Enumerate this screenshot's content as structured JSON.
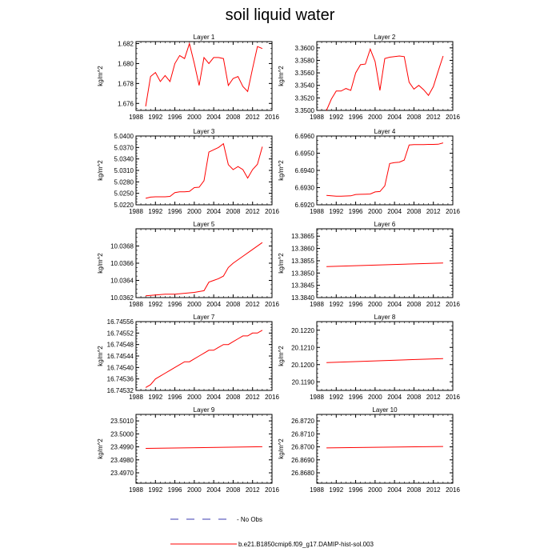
{
  "title": "soil liquid water",
  "legend": {
    "no_obs_label": "No Obs",
    "series_label": "b.e21.B1850cmip6.f09_g17.DAMIP-hist-sol.003",
    "series_color": "#ff0000",
    "no_obs_color": "#3b3bb0"
  },
  "chart_data": [
    {
      "type": "line",
      "title": "Layer 1",
      "ylabel": "kg/m^2",
      "xlim": [
        1988,
        2016
      ],
      "xticks": [
        "1988",
        "1992",
        "1996",
        "2000",
        "2004",
        "2008",
        "2012",
        "2016"
      ],
      "ylim": [
        1.6753,
        1.6822
      ],
      "yticks": [
        "1.676",
        "1.678",
        "1.680",
        "1.682"
      ],
      "series": [
        {
          "x": [
            1990,
            1991,
            1992,
            1993,
            1994,
            1995,
            1996,
            1997,
            1998,
            1999,
            2000,
            2001,
            2002,
            2003,
            2004,
            2005,
            2006,
            2007,
            2008,
            2009,
            2010,
            2011,
            2012,
            2013,
            2014
          ],
          "y": [
            1.6757,
            1.6787,
            1.6791,
            1.6782,
            1.6788,
            1.6782,
            1.68,
            1.6808,
            1.6805,
            1.682,
            1.68,
            1.6778,
            1.6806,
            1.68,
            1.6806,
            1.6806,
            1.6805,
            1.6778,
            1.6785,
            1.6787,
            1.6777,
            1.6772,
            1.6795,
            1.6817,
            1.6815
          ]
        }
      ]
    },
    {
      "type": "line",
      "title": "Layer 2",
      "ylabel": "kg/m^2",
      "xlim": [
        1988,
        2016
      ],
      "xticks": [
        "1988",
        "1992",
        "1996",
        "2000",
        "2004",
        "2008",
        "2012",
        "2016"
      ],
      "ylim": [
        3.35,
        3.361
      ],
      "yticks": [
        "3.3500",
        "3.3520",
        "3.3540",
        "3.3560",
        "3.3580",
        "3.3600"
      ],
      "series": [
        {
          "x": [
            1990,
            1991,
            1992,
            1993,
            1994,
            1995,
            1996,
            1997,
            1998,
            1999,
            2000,
            2001,
            2002,
            2003,
            2004,
            2005,
            2006,
            2007,
            2008,
            2009,
            2010,
            2011,
            2012,
            2013,
            2014
          ],
          "y": [
            3.35,
            3.3518,
            3.3531,
            3.3531,
            3.3535,
            3.3532,
            3.356,
            3.3573,
            3.3574,
            3.3598,
            3.3578,
            3.3532,
            3.3583,
            3.3585,
            3.3586,
            3.3587,
            3.3586,
            3.3545,
            3.3534,
            3.354,
            3.3533,
            3.3524,
            3.3538,
            3.3563,
            3.3587
          ]
        }
      ]
    },
    {
      "type": "line",
      "title": "Layer 3",
      "ylabel": "kg/m^2",
      "xlim": [
        1988,
        2016
      ],
      "xticks": [
        "1988",
        "1992",
        "1996",
        "2000",
        "2004",
        "2008",
        "2012",
        "2016"
      ],
      "ylim": [
        5.022,
        5.04
      ],
      "yticks": [
        "5.0220",
        "5.0250",
        "5.0280",
        "5.0310",
        "5.0340",
        "5.0370",
        "5.0400"
      ],
      "series": [
        {
          "x": [
            1990,
            1991,
            1992,
            1993,
            1994,
            1995,
            1996,
            1997,
            1998,
            1999,
            2000,
            2001,
            2002,
            2003,
            2004,
            2005,
            2006,
            2007,
            2008,
            2009,
            2010,
            2011,
            2012,
            2013,
            2014
          ],
          "y": [
            5.0237,
            5.024,
            5.0241,
            5.0241,
            5.0241,
            5.0242,
            5.0252,
            5.0254,
            5.0254,
            5.0255,
            5.0265,
            5.0266,
            5.0283,
            5.0358,
            5.0364,
            5.037,
            5.038,
            5.0325,
            5.0312,
            5.032,
            5.0312,
            5.029,
            5.0312,
            5.0326,
            5.0372
          ]
        }
      ]
    },
    {
      "type": "line",
      "title": "Layer 4",
      "ylabel": "kg/m^2",
      "xlim": [
        1988,
        2016
      ],
      "xticks": [
        "1988",
        "1992",
        "1996",
        "2000",
        "2004",
        "2008",
        "2012",
        "2016"
      ],
      "ylim": [
        6.692,
        6.696
      ],
      "yticks": [
        "6.6920",
        "6.6930",
        "6.6940",
        "6.6950",
        "6.6960"
      ],
      "series": [
        {
          "x": [
            1990,
            1991,
            1992,
            1993,
            1994,
            1995,
            1996,
            1997,
            1998,
            1999,
            2000,
            2001,
            2002,
            2003,
            2004,
            2005,
            2006,
            2007,
            2008,
            2009,
            2010,
            2011,
            2012,
            2013,
            2014
          ],
          "y": [
            6.69255,
            6.69252,
            6.6925,
            6.6925,
            6.69251,
            6.69252,
            6.6926,
            6.69261,
            6.69262,
            6.69263,
            6.69275,
            6.69277,
            6.6931,
            6.6944,
            6.69445,
            6.69448,
            6.6946,
            6.69548,
            6.6955,
            6.6955,
            6.6955,
            6.69551,
            6.69551,
            6.69552,
            6.6956
          ]
        }
      ]
    },
    {
      "type": "line",
      "title": "Layer 5",
      "ylabel": "kg/m^2",
      "xlim": [
        1988,
        2016
      ],
      "xticks": [
        "1988",
        "1992",
        "1996",
        "2000",
        "2004",
        "2008",
        "2012",
        "2016"
      ],
      "ylim": [
        10.0362,
        10.037
      ],
      "yticks": [
        "10.0362",
        "10.0364",
        "10.0366",
        "10.0368"
      ],
      "series": [
        {
          "x": [
            1990,
            1992,
            1994,
            1996,
            1998,
            2000,
            2002,
            2003,
            2004,
            2005,
            2006,
            2007,
            2008,
            2010,
            2012,
            2014
          ],
          "y": [
            10.03622,
            10.03623,
            10.03624,
            10.03624,
            10.03625,
            10.03626,
            10.03628,
            10.03638,
            10.0364,
            10.03642,
            10.03645,
            10.03655,
            10.0366,
            10.03668,
            10.03676,
            10.03684
          ]
        }
      ]
    },
    {
      "type": "line",
      "title": "Layer 6",
      "ylabel": "kg/m^2",
      "xlim": [
        1988,
        2016
      ],
      "xticks": [
        "1988",
        "1992",
        "1996",
        "2000",
        "2004",
        "2008",
        "2012",
        "2016"
      ],
      "ylim": [
        13.384,
        13.3868
      ],
      "yticks": [
        "13.3840",
        "13.3845",
        "13.3850",
        "13.3855",
        "13.3860",
        "13.3865"
      ],
      "series": [
        {
          "x": [
            1990,
            2014
          ],
          "y": [
            13.38526,
            13.38541
          ]
        }
      ]
    },
    {
      "type": "line",
      "title": "Layer 7",
      "ylabel": "kg/m^2",
      "xlim": [
        1988,
        2016
      ],
      "xticks": [
        "1988",
        "1992",
        "1996",
        "2000",
        "2004",
        "2008",
        "2012",
        "2016"
      ],
      "ylim": [
        16.74532,
        16.74556
      ],
      "yticks": [
        "16.74532",
        "16.74536",
        "16.74540",
        "16.74544",
        "16.74548",
        "16.74552",
        "16.74556"
      ],
      "series": [
        {
          "x": [
            1990,
            1991,
            1992,
            1993,
            1994,
            1995,
            1996,
            1997,
            1998,
            1999,
            2000,
            2001,
            2002,
            2003,
            2004,
            2005,
            2006,
            2007,
            2008,
            2009,
            2010,
            2011,
            2012,
            2013,
            2014
          ],
          "y": [
            16.74533,
            16.74534,
            16.74536,
            16.74537,
            16.74538,
            16.74539,
            16.7454,
            16.74541,
            16.74542,
            16.74542,
            16.74543,
            16.74544,
            16.74545,
            16.74546,
            16.74546,
            16.74547,
            16.74548,
            16.74548,
            16.74549,
            16.7455,
            16.74551,
            16.74551,
            16.74552,
            16.74552,
            16.74553
          ]
        }
      ]
    },
    {
      "type": "line",
      "title": "Layer 8",
      "ylabel": "kg/m^2",
      "xlim": [
        1988,
        2016
      ],
      "xticks": [
        "1988",
        "1992",
        "1996",
        "2000",
        "2004",
        "2008",
        "2012",
        "2016"
      ],
      "ylim": [
        20.1185,
        20.1225
      ],
      "yticks": [
        "20.1190",
        "20.1200",
        "20.1210",
        "20.1220"
      ],
      "series": [
        {
          "x": [
            1990,
            2014
          ],
          "y": [
            20.12012,
            20.12035
          ]
        }
      ]
    },
    {
      "type": "line",
      "title": "Layer 9",
      "ylabel": "kg/m^2",
      "xlim": [
        1988,
        2016
      ],
      "xticks": [
        "1988",
        "1992",
        "1996",
        "2000",
        "2004",
        "2008",
        "2012",
        "2016"
      ],
      "ylim": [
        23.4962,
        23.5015
      ],
      "yticks": [
        "23.4970",
        "23.4980",
        "23.4990",
        "23.5000",
        "23.5010"
      ],
      "series": [
        {
          "x": [
            1990,
            2014
          ],
          "y": [
            23.49888,
            23.49901
          ]
        }
      ]
    },
    {
      "type": "line",
      "title": "Layer 10",
      "ylabel": "kg/m^2",
      "xlim": [
        1988,
        2016
      ],
      "xticks": [
        "1988",
        "1992",
        "1996",
        "2000",
        "2004",
        "2008",
        "2012",
        "2016"
      ],
      "ylim": [
        26.8672,
        26.8725
      ],
      "yticks": [
        "26.8680",
        "26.8690",
        "26.8700",
        "26.8710",
        "26.8720"
      ],
      "series": [
        {
          "x": [
            1990,
            2014
          ],
          "y": [
            26.86992,
            26.87003
          ]
        }
      ]
    }
  ]
}
